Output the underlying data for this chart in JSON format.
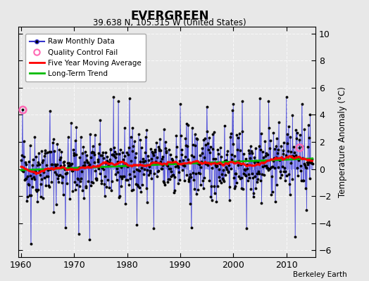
{
  "title": "EVERGREEN",
  "subtitle": "39.638 N, 105.315 W (United States)",
  "ylabel": "Temperature Anomaly (°C)",
  "attribution": "Berkeley Earth",
  "xlim": [
    1959.5,
    2015.5
  ],
  "ylim": [
    -6.5,
    10.5
  ],
  "yticks": [
    -6,
    -4,
    -2,
    0,
    2,
    4,
    6,
    8,
    10
  ],
  "xticks": [
    1960,
    1970,
    1980,
    1990,
    2000,
    2010
  ],
  "background_color": "#e8e8e8",
  "plot_bg_color": "#dcdcdc",
  "raw_color": "#3333cc",
  "raw_line_color": "#6666ff",
  "moving_avg_color": "#ff0000",
  "trend_color": "#00bb00",
  "qc_color": "#ff69b4",
  "dot_color": "#000000",
  "seed": 42,
  "n_months": 660,
  "start_year": 1960,
  "end_year": 2014.917
}
